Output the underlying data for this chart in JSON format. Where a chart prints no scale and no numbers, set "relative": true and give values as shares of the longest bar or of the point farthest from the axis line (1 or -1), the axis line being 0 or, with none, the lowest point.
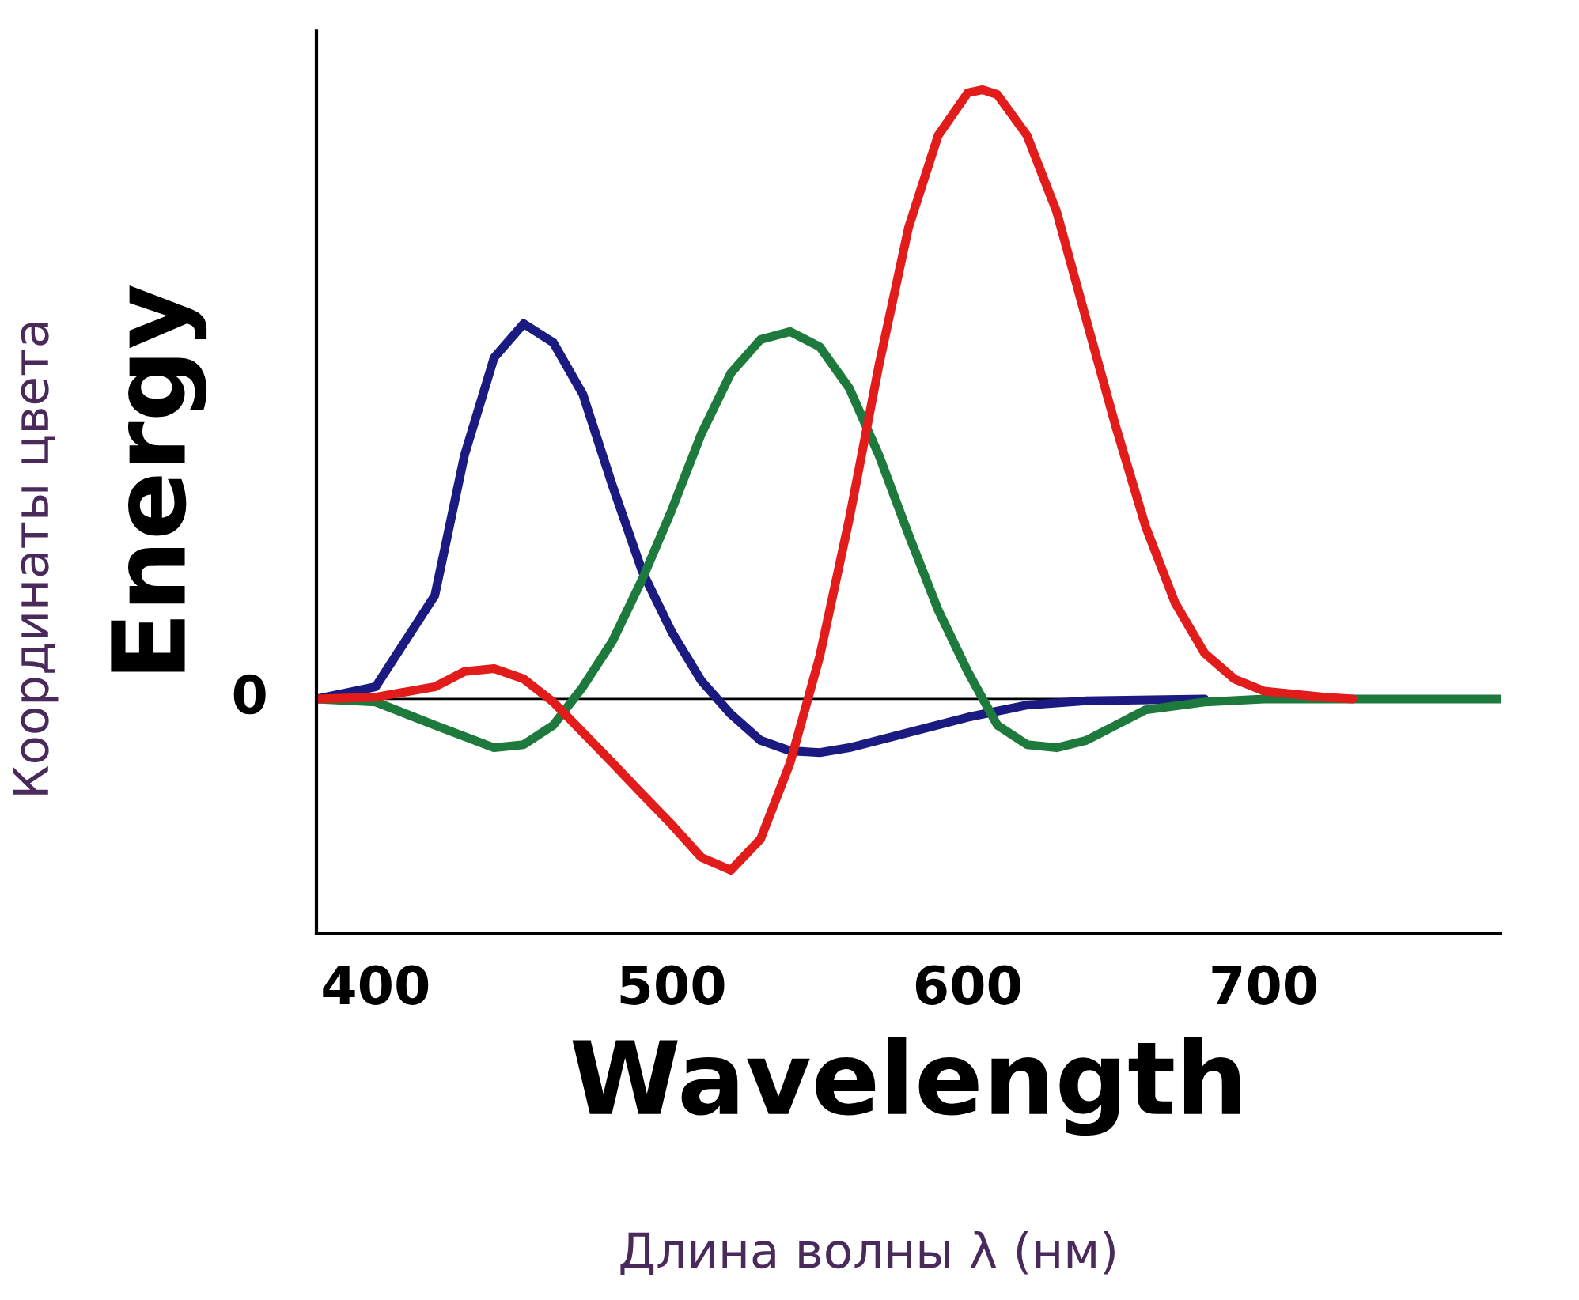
{
  "chart_data": {
    "type": "line",
    "relative": true,
    "xlabel": "Wavelength",
    "ylabel": "Energy",
    "annotations": [
      "Координаты цвета",
      "Длина волны λ (нм)"
    ],
    "xlim": [
      380,
      780
    ],
    "xticks": [
      400,
      500,
      600,
      700
    ],
    "grid": false,
    "legend": false,
    "marker": "none",
    "line_style": "solid",
    "tick_labels": "x",
    "ref_lines": [
      {
        "axis": "y",
        "value": 0,
        "label": "0",
        "color": "#000000"
      }
    ],
    "series": [
      {
        "color": "#1a1a80",
        "x": [
          380,
          400,
          420,
          430,
          440,
          450,
          460,
          470,
          480,
          490,
          500,
          510,
          520,
          530,
          540,
          550,
          560,
          580,
          600,
          620,
          640,
          680
        ],
        "values": [
          0,
          0.02,
          0.17,
          0.4,
          0.56,
          0.616,
          0.585,
          0.5,
          0.35,
          0.21,
          0.11,
          0.03,
          -0.025,
          -0.068,
          -0.085,
          -0.088,
          -0.08,
          -0.055,
          -0.03,
          -0.01,
          -0.003,
          0
        ]
      },
      {
        "color": "#1e7a3c",
        "x": [
          380,
          400,
          420,
          440,
          450,
          460,
          470,
          480,
          490,
          500,
          510,
          520,
          530,
          540,
          550,
          560,
          570,
          580,
          590,
          600,
          610,
          620,
          630,
          640,
          650,
          660,
          680,
          700,
          780
        ],
        "values": [
          0,
          -0.005,
          -0.043,
          -0.08,
          -0.075,
          -0.043,
          0.02,
          0.095,
          0.196,
          0.31,
          0.435,
          0.535,
          0.59,
          0.603,
          0.578,
          0.51,
          0.4,
          0.27,
          0.146,
          0.045,
          -0.043,
          -0.075,
          -0.08,
          -0.068,
          -0.043,
          -0.018,
          -0.005,
          0,
          0
        ]
      },
      {
        "color": "#e21b1b",
        "x": [
          380,
          400,
          420,
          430,
          440,
          450,
          460,
          470,
          480,
          490,
          500,
          510,
          520,
          530,
          540,
          550,
          560,
          570,
          580,
          590,
          600,
          605,
          610,
          620,
          630,
          640,
          650,
          660,
          670,
          680,
          690,
          700,
          720,
          730
        ],
        "values": [
          0,
          0.003,
          0.02,
          0.045,
          0.05,
          0.033,
          -0.005,
          -0.055,
          -0.105,
          -0.156,
          -0.206,
          -0.26,
          -0.281,
          -0.23,
          -0.105,
          0.07,
          0.296,
          0.548,
          0.774,
          0.925,
          0.995,
          1.0,
          0.992,
          0.925,
          0.8,
          0.623,
          0.447,
          0.284,
          0.158,
          0.075,
          0.033,
          0.013,
          0.003,
          0
        ]
      }
    ]
  }
}
